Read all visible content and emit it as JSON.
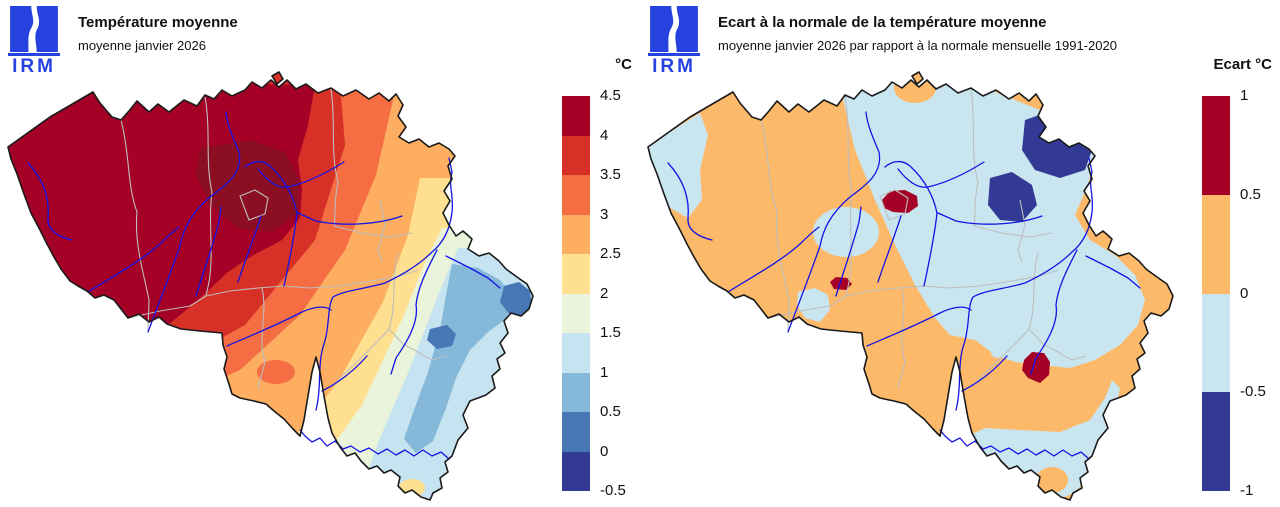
{
  "brand": {
    "logo_text": "IRM",
    "logo_color": "#2743df"
  },
  "panels": [
    {
      "title": "Température moyenne",
      "subtitle": "moyenne janvier 2026",
      "legend": {
        "title": "°C",
        "ticks": [
          "4.5",
          "4",
          "3.5",
          "3",
          "2.5",
          "2",
          "1.5",
          "1",
          "0.5",
          "0",
          "-0.5"
        ],
        "colors": [
          "#a50026",
          "#d73027",
          "#f46d43",
          "#fdae61",
          "#fee090",
          "#e9f4da",
          "#c5e3f0",
          "#85b8d9",
          "#4777b5",
          "#333a96"
        ]
      }
    },
    {
      "title": "Ecart à la normale de la température moyenne",
      "subtitle": "moyenne janvier 2026 par rapport à la normale mensuelle 1991-2020",
      "legend": {
        "title": "Ecart °C",
        "ticks": [
          "1",
          "0.5",
          "0",
          "-0.5",
          "-1"
        ],
        "colors": [
          "#a50026",
          "#fdb96a",
          "#c9e6f0",
          "#333a96"
        ]
      }
    }
  ],
  "map_style": {
    "outline": "#1a1a1a",
    "river": "#1414e6",
    "province": "#bdbdbd",
    "hot_core": "#8c0e22",
    "background": "#ffffff"
  }
}
